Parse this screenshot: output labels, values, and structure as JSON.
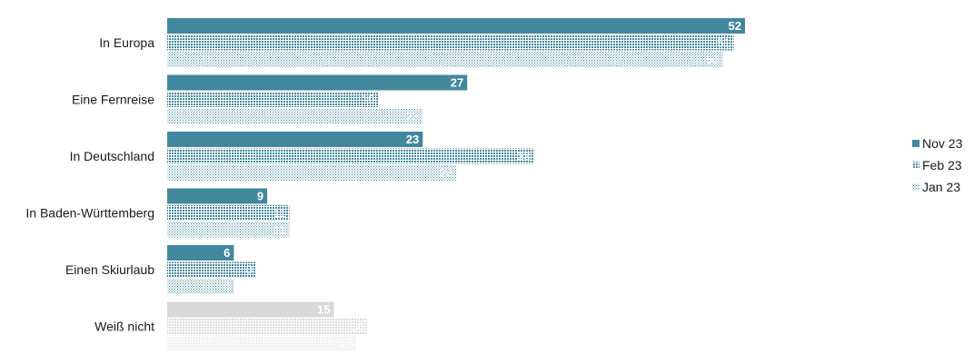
{
  "chart_data": {
    "type": "bar",
    "orientation": "horizontal",
    "categories": [
      "In Europa",
      "Eine Fernreise",
      "In Deutschland",
      "In Baden-Württemberg",
      "Einen Skiurlaub",
      "Weiß nicht"
    ],
    "series": [
      {
        "name": "Nov 23",
        "values": [
          52,
          27,
          23,
          9,
          6,
          15
        ],
        "color": "#41889e",
        "pattern": "solid"
      },
      {
        "name": "Feb 23",
        "values": [
          51,
          19,
          33,
          11,
          8,
          18
        ],
        "color": "#41889e",
        "pattern": "dots-dense"
      },
      {
        "name": "Jan 23",
        "values": [
          50,
          23,
          26,
          11,
          6,
          17
        ],
        "color": "#41889e",
        "pattern": "dots-sparse"
      }
    ],
    "muted_category": "Weiß nicht",
    "muted_color": "#d9d9d9",
    "xlim": [
      0,
      52
    ],
    "grid": false,
    "legend_position": "right",
    "data_labels": true
  }
}
